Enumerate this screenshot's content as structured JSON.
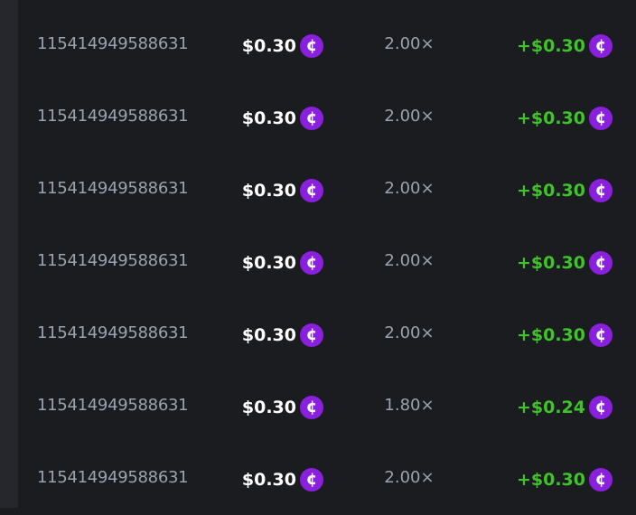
{
  "colors": {
    "background": "#1b1c20",
    "profit": "#3fc32a",
    "coin": "#8a1fe0",
    "muted": "#9aa3ad"
  },
  "coin_icon": "cent-coin-icon",
  "bets": [
    {
      "id": "115414949588631",
      "amount": "$0.30",
      "multiplier": "2.00×",
      "profit": "+$0.30"
    },
    {
      "id": "115414949588631",
      "amount": "$0.30",
      "multiplier": "2.00×",
      "profit": "+$0.30"
    },
    {
      "id": "115414949588631",
      "amount": "$0.30",
      "multiplier": "2.00×",
      "profit": "+$0.30"
    },
    {
      "id": "115414949588631",
      "amount": "$0.30",
      "multiplier": "2.00×",
      "profit": "+$0.30"
    },
    {
      "id": "115414949588631",
      "amount": "$0.30",
      "multiplier": "2.00×",
      "profit": "+$0.30"
    },
    {
      "id": "115414949588631",
      "amount": "$0.30",
      "multiplier": "1.80×",
      "profit": "+$0.24"
    },
    {
      "id": "115414949588631",
      "amount": "$0.30",
      "multiplier": "2.00×",
      "profit": "+$0.30"
    }
  ]
}
